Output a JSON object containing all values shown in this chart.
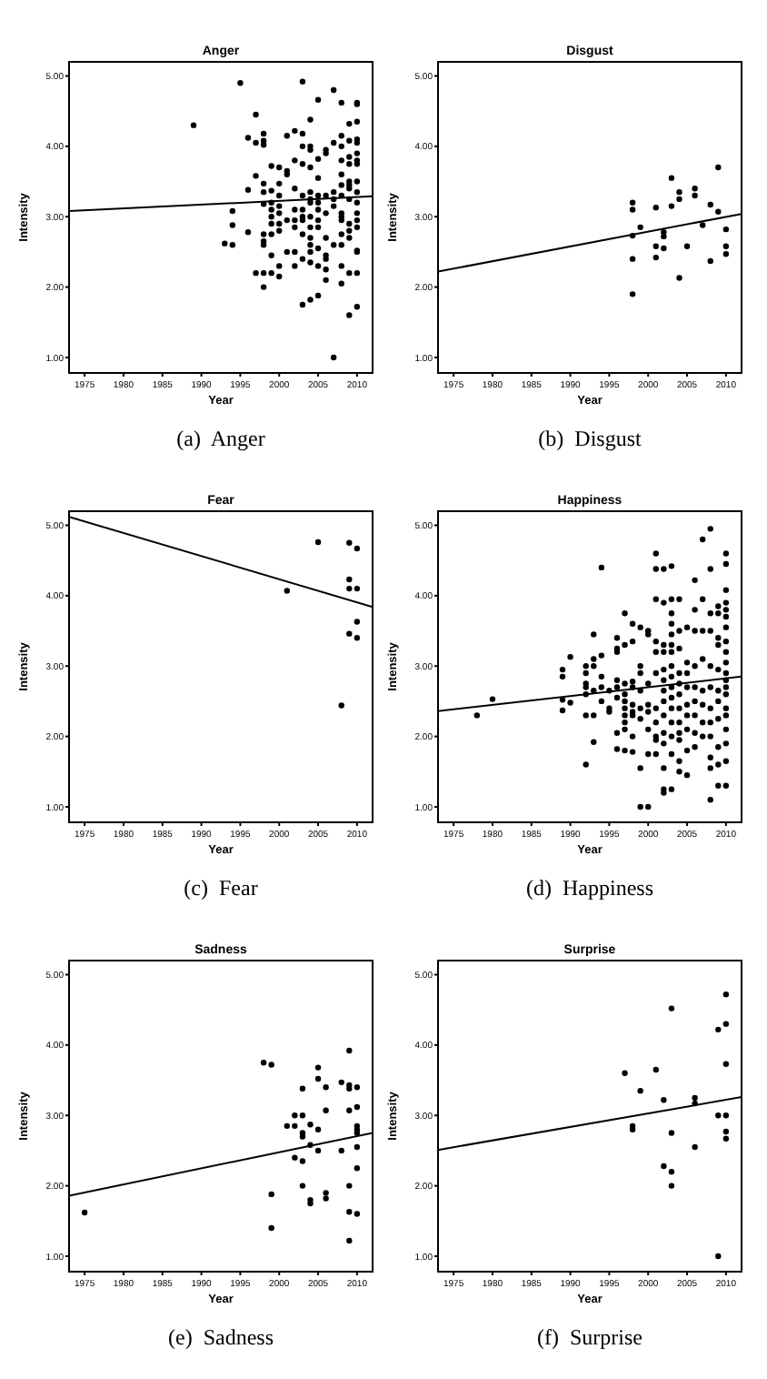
{
  "chart_data": [
    {
      "type": "scatter",
      "title": "Anger",
      "xlabel": "Year",
      "ylabel": "Intensity",
      "annotations": [
        "(a)  Anger"
      ],
      "xlim": [
        1973,
        2012
      ],
      "ylim": [
        0.78,
        5.2
      ],
      "xticks": [
        1975,
        1980,
        1985,
        1990,
        1995,
        2000,
        2005,
        2010
      ],
      "yticks": [
        {
          "value": 1,
          "label": "1.00"
        },
        {
          "value": 2,
          "label": "2.00"
        },
        {
          "value": 3,
          "label": "3.00"
        },
        {
          "value": 4,
          "label": "4.00"
        },
        {
          "value": 5,
          "label": "5.00"
        }
      ],
      "series": [
        {
          "color": "#000000",
          "marker": "circle",
          "x": [
            1989,
            1993,
            1994,
            1994,
            1994,
            1995,
            1996,
            1996,
            1996,
            1997,
            1997,
            1997,
            1997,
            1998,
            1998,
            1998,
            1998,
            1998,
            1998,
            1998,
            1998,
            1998,
            1998,
            1998,
            1999,
            1999,
            1999,
            1999,
            1999,
            1999,
            1999,
            1999,
            1999,
            2000,
            2000,
            2000,
            2000,
            2000,
            2000,
            2000,
            2000,
            2000,
            2001,
            2001,
            2001,
            2001,
            2001,
            2002,
            2002,
            2002,
            2002,
            2002,
            2002,
            2002,
            2002,
            2003,
            2003,
            2003,
            2003,
            2003,
            2003,
            2003,
            2003,
            2003,
            2003,
            2003,
            2004,
            2004,
            2004,
            2004,
            2004,
            2004,
            2004,
            2004,
            2004,
            2004,
            2004,
            2004,
            2004,
            2004,
            2005,
            2005,
            2005,
            2005,
            2005,
            2005,
            2005,
            2005,
            2005,
            2005,
            2005,
            2006,
            2006,
            2006,
            2006,
            2006,
            2006,
            2006,
            2006,
            2006,
            2007,
            2007,
            2007,
            2007,
            2007,
            2007,
            2007,
            2008,
            2008,
            2008,
            2008,
            2008,
            2008,
            2008,
            2008,
            2008,
            2008,
            2008,
            2008,
            2008,
            2008,
            2009,
            2009,
            2009,
            2009,
            2009,
            2009,
            2009,
            2009,
            2009,
            2009,
            2009,
            2009,
            2009,
            2010,
            2010,
            2010,
            2010,
            2010,
            2010,
            2010,
            2010,
            2010,
            2010,
            2010,
            2010,
            2010,
            2010,
            2010,
            2010,
            2010,
            2010
          ],
          "values": [
            4.3,
            2.62,
            3.08,
            2.88,
            2.6,
            4.9,
            4.12,
            3.38,
            2.78,
            4.45,
            4.05,
            3.58,
            2.2,
            4.18,
            4.08,
            4.02,
            3.47,
            3.35,
            3.18,
            2.75,
            2.65,
            2.6,
            2.2,
            2.0,
            3.72,
            3.37,
            3.2,
            3.1,
            3.0,
            2.9,
            2.75,
            2.45,
            2.2,
            3.7,
            3.47,
            3.3,
            3.15,
            3.05,
            2.9,
            2.8,
            2.3,
            2.15,
            4.15,
            3.65,
            3.6,
            2.95,
            2.5,
            4.22,
            3.8,
            3.4,
            3.1,
            2.95,
            2.85,
            2.5,
            2.3,
            4.92,
            4.18,
            4.0,
            3.75,
            3.3,
            3.1,
            3.0,
            2.95,
            2.75,
            2.4,
            1.75,
            4.38,
            4.0,
            3.95,
            3.7,
            3.35,
            3.25,
            3.2,
            3.0,
            2.85,
            2.7,
            2.6,
            2.5,
            2.35,
            1.82,
            4.66,
            3.82,
            3.55,
            3.3,
            3.2,
            3.1,
            2.95,
            2.85,
            2.55,
            2.3,
            1.88,
            3.95,
            3.9,
            3.3,
            3.05,
            2.7,
            2.45,
            2.4,
            2.25,
            2.1,
            4.8,
            4.05,
            3.35,
            3.25,
            3.15,
            2.6,
            1.0,
            4.62,
            4.15,
            4.0,
            3.8,
            3.6,
            3.45,
            3.3,
            3.05,
            3.0,
            2.95,
            2.75,
            2.6,
            2.3,
            2.05,
            4.32,
            4.08,
            3.85,
            3.75,
            3.5,
            3.45,
            3.4,
            3.25,
            2.9,
            2.8,
            2.7,
            2.2,
            1.6,
            4.62,
            4.6,
            4.35,
            4.1,
            4.05,
            3.9,
            3.8,
            3.75,
            3.5,
            3.35,
            3.2,
            3.05,
            2.95,
            2.85,
            2.52,
            2.5,
            2.2,
            1.72
          ]
        },
        {
          "type": "line",
          "color": "#000000",
          "x": [
            1973,
            2012
          ],
          "values": [
            3.08,
            3.29
          ]
        }
      ]
    },
    {
      "type": "scatter",
      "title": "Disgust",
      "xlabel": "Year",
      "ylabel": "Intensity",
      "annotations": [
        "(b)  Disgust"
      ],
      "xlim": [
        1973,
        2012
      ],
      "ylim": [
        0.78,
        5.2
      ],
      "xticks": [
        1975,
        1980,
        1985,
        1990,
        1995,
        2000,
        2005,
        2010
      ],
      "yticks": [
        {
          "value": 1,
          "label": "1.00"
        },
        {
          "value": 2,
          "label": "2.00"
        },
        {
          "value": 3,
          "label": "3.00"
        },
        {
          "value": 4,
          "label": "4.00"
        },
        {
          "value": 5,
          "label": "5.00"
        }
      ],
      "series": [
        {
          "color": "#000000",
          "marker": "circle",
          "x": [
            1998,
            1998,
            1998,
            1998,
            1998,
            1999,
            2001,
            2001,
            2001,
            2002,
            2002,
            2002,
            2003,
            2003,
            2004,
            2004,
            2004,
            2005,
            2006,
            2006,
            2007,
            2008,
            2008,
            2009,
            2009,
            2010,
            2010,
            2010
          ],
          "values": [
            3.2,
            3.1,
            2.73,
            2.4,
            1.9,
            2.85,
            3.13,
            2.58,
            2.42,
            2.78,
            2.72,
            2.55,
            3.55,
            3.15,
            3.35,
            3.25,
            2.13,
            2.58,
            3.4,
            3.3,
            2.88,
            3.17,
            2.37,
            3.7,
            3.07,
            2.82,
            2.58,
            2.47
          ]
        },
        {
          "type": "line",
          "color": "#000000",
          "x": [
            1973,
            2012
          ],
          "values": [
            2.22,
            3.04
          ]
        }
      ]
    },
    {
      "type": "scatter",
      "title": "Fear",
      "xlabel": "Year",
      "ylabel": "Intensity",
      "annotations": [
        "(c)  Fear"
      ],
      "xlim": [
        1973,
        2012
      ],
      "ylim": [
        0.78,
        5.2
      ],
      "xticks": [
        1975,
        1980,
        1985,
        1990,
        1995,
        2000,
        2005,
        2010
      ],
      "yticks": [
        {
          "value": 1,
          "label": "1.00"
        },
        {
          "value": 2,
          "label": "2.00"
        },
        {
          "value": 3,
          "label": "3.00"
        },
        {
          "value": 4,
          "label": "4.00"
        },
        {
          "value": 5,
          "label": "5.00"
        }
      ],
      "series": [
        {
          "color": "#000000",
          "marker": "circle",
          "x": [
            2001,
            2005,
            2008,
            2009,
            2009,
            2009,
            2009,
            2010,
            2010,
            2010,
            2010
          ],
          "values": [
            4.07,
            4.76,
            2.44,
            4.75,
            4.23,
            4.1,
            3.46,
            4.67,
            4.1,
            3.63,
            3.4
          ]
        },
        {
          "type": "line",
          "color": "#000000",
          "x": [
            1973,
            2012
          ],
          "values": [
            5.12,
            3.84
          ]
        }
      ]
    },
    {
      "type": "scatter",
      "title": "Happiness",
      "xlabel": "Year",
      "ylabel": "Intensity",
      "annotations": [
        "(d)  Happiness"
      ],
      "xlim": [
        1973,
        2012
      ],
      "ylim": [
        0.78,
        5.2
      ],
      "xticks": [
        1975,
        1980,
        1985,
        1990,
        1995,
        2000,
        2005,
        2010
      ],
      "yticks": [
        {
          "value": 1,
          "label": "1.00"
        },
        {
          "value": 2,
          "label": "2.00"
        },
        {
          "value": 3,
          "label": "3.00"
        },
        {
          "value": 4,
          "label": "4.00"
        },
        {
          "value": 5,
          "label": "5.00"
        }
      ],
      "series": [
        {
          "color": "#000000",
          "marker": "circle",
          "x": [
            1978,
            1980,
            1989,
            1989,
            1989,
            1989,
            1990,
            1990,
            1992,
            1992,
            1992,
            1992,
            1992,
            1992,
            1992,
            1993,
            1993,
            1993,
            1993,
            1993,
            1993,
            1994,
            1994,
            1994,
            1994,
            1994,
            1995,
            1995,
            1995,
            1996,
            1996,
            1996,
            1996,
            1996,
            1996,
            1996,
            1996,
            1997,
            1997,
            1997,
            1997,
            1997,
            1997,
            1997,
            1997,
            1997,
            1997,
            1998,
            1998,
            1998,
            1998,
            1998,
            1998,
            1998,
            1998,
            1998,
            1999,
            1999,
            1999,
            1999,
            1999,
            1999,
            1999,
            1999,
            2000,
            2000,
            2000,
            2000,
            2000,
            2000,
            2000,
            2000,
            2001,
            2001,
            2001,
            2001,
            2001,
            2001,
            2001,
            2001,
            2001,
            2001,
            2001,
            2002,
            2002,
            2002,
            2002,
            2002,
            2002,
            2002,
            2002,
            2002,
            2002,
            2002,
            2002,
            2002,
            2002,
            2003,
            2003,
            2003,
            2003,
            2003,
            2003,
            2003,
            2003,
            2003,
            2003,
            2003,
            2003,
            2003,
            2003,
            2003,
            2003,
            2004,
            2004,
            2004,
            2004,
            2004,
            2004,
            2004,
            2004,
            2004,
            2004,
            2004,
            2004,
            2005,
            2005,
            2005,
            2005,
            2005,
            2005,
            2005,
            2005,
            2005,
            2006,
            2006,
            2006,
            2006,
            2006,
            2006,
            2006,
            2006,
            2006,
            2007,
            2007,
            2007,
            2007,
            2007,
            2007,
            2007,
            2007,
            2008,
            2008,
            2008,
            2008,
            2008,
            2008,
            2008,
            2008,
            2008,
            2008,
            2008,
            2008,
            2009,
            2009,
            2009,
            2009,
            2009,
            2009,
            2009,
            2009,
            2009,
            2009,
            2009,
            2010,
            2010,
            2010,
            2010,
            2010,
            2010,
            2010,
            2010,
            2010,
            2010,
            2010,
            2010,
            2010,
            2010,
            2010,
            2010,
            2010,
            2010,
            2010,
            2010
          ],
          "values": [
            2.3,
            2.53,
            2.95,
            2.85,
            2.52,
            2.37,
            3.13,
            2.48,
            3.0,
            2.9,
            2.75,
            2.7,
            2.6,
            2.3,
            1.6,
            3.45,
            3.1,
            3.0,
            2.65,
            2.3,
            1.92,
            4.4,
            3.15,
            2.85,
            2.7,
            2.5,
            2.65,
            2.4,
            2.35,
            3.4,
            3.25,
            3.2,
            2.8,
            2.7,
            2.55,
            2.05,
            1.82,
            3.75,
            3.3,
            2.75,
            2.6,
            2.5,
            2.4,
            2.3,
            2.2,
            2.1,
            1.8,
            3.6,
            3.35,
            2.78,
            2.7,
            2.45,
            2.35,
            2.3,
            2.0,
            1.78,
            3.55,
            3.0,
            2.9,
            2.65,
            2.4,
            2.25,
            1.55,
            1.0,
            3.5,
            3.45,
            2.75,
            2.45,
            2.35,
            2.1,
            1.75,
            1.0,
            4.6,
            4.38,
            3.95,
            3.35,
            3.2,
            2.9,
            2.4,
            2.2,
            2.0,
            1.95,
            1.75,
            4.38,
            3.9,
            3.3,
            3.2,
            2.95,
            2.8,
            2.65,
            2.5,
            2.3,
            2.05,
            1.9,
            1.55,
            1.25,
            1.2,
            4.42,
            3.95,
            3.75,
            3.6,
            3.45,
            3.3,
            3.2,
            3.0,
            2.85,
            2.7,
            2.55,
            2.4,
            2.2,
            2.0,
            1.75,
            1.25,
            3.95,
            3.5,
            3.25,
            2.9,
            2.75,
            2.6,
            2.4,
            2.2,
            2.05,
            1.95,
            1.65,
            1.5,
            3.55,
            3.05,
            2.9,
            2.7,
            2.45,
            2.3,
            2.1,
            1.8,
            1.45,
            4.22,
            3.8,
            3.5,
            3.0,
            2.7,
            2.5,
            2.3,
            2.05,
            1.85,
            4.8,
            3.95,
            3.5,
            3.1,
            2.65,
            2.45,
            2.2,
            2.0,
            4.95,
            4.38,
            3.75,
            3.5,
            3.0,
            2.7,
            2.4,
            2.2,
            2.0,
            1.7,
            1.55,
            1.1,
            3.85,
            3.75,
            3.4,
            3.3,
            2.95,
            2.65,
            2.5,
            2.25,
            1.85,
            1.6,
            1.3,
            4.6,
            4.45,
            4.08,
            3.9,
            3.8,
            3.7,
            3.55,
            3.35,
            3.2,
            3.05,
            2.9,
            2.8,
            2.7,
            2.6,
            2.4,
            2.3,
            2.1,
            1.9,
            1.65,
            1.3
          ]
        },
        {
          "type": "line",
          "color": "#000000",
          "x": [
            1973,
            2012
          ],
          "values": [
            2.36,
            2.85
          ]
        }
      ]
    },
    {
      "type": "scatter",
      "title": "Sadness",
      "xlabel": "Year",
      "ylabel": "Intensity",
      "annotations": [
        "(e)  Sadness"
      ],
      "xlim": [
        1973,
        2012
      ],
      "ylim": [
        0.78,
        5.2
      ],
      "xticks": [
        1975,
        1980,
        1985,
        1990,
        1995,
        2000,
        2005,
        2010
      ],
      "yticks": [
        {
          "value": 1,
          "label": "1.00"
        },
        {
          "value": 2,
          "label": "2.00"
        },
        {
          "value": 3,
          "label": "3.00"
        },
        {
          "value": 4,
          "label": "4.00"
        },
        {
          "value": 5,
          "label": "5.00"
        }
      ],
      "series": [
        {
          "color": "#000000",
          "marker": "circle",
          "x": [
            1975,
            1998,
            1999,
            1999,
            1999,
            2001,
            2002,
            2002,
            2002,
            2003,
            2003,
            2003,
            2003,
            2003,
            2003,
            2004,
            2004,
            2004,
            2004,
            2005,
            2005,
            2005,
            2005,
            2006,
            2006,
            2006,
            2006,
            2008,
            2008,
            2009,
            2009,
            2009,
            2009,
            2009,
            2009,
            2009,
            2010,
            2010,
            2010,
            2010,
            2010,
            2010,
            2010,
            2010
          ],
          "values": [
            1.62,
            3.75,
            3.72,
            1.88,
            1.4,
            2.85,
            3.0,
            2.85,
            2.4,
            3.38,
            3.0,
            2.75,
            2.7,
            2.35,
            2.0,
            2.87,
            2.58,
            1.8,
            1.75,
            3.68,
            3.52,
            2.8,
            2.5,
            3.4,
            3.07,
            1.9,
            1.82,
            3.47,
            2.5,
            3.92,
            3.43,
            3.38,
            3.07,
            2.0,
            1.63,
            1.22,
            3.4,
            3.12,
            2.85,
            2.8,
            2.75,
            2.55,
            2.25,
            1.6
          ]
        },
        {
          "type": "line",
          "color": "#000000",
          "x": [
            1973,
            2012
          ],
          "values": [
            1.86,
            2.75
          ]
        }
      ]
    },
    {
      "type": "scatter",
      "title": "Surprise",
      "xlabel": "Year",
      "ylabel": "Intensity",
      "annotations": [
        "(f)  Surprise"
      ],
      "xlim": [
        1973,
        2012
      ],
      "ylim": [
        0.78,
        5.2
      ],
      "xticks": [
        1975,
        1980,
        1985,
        1990,
        1995,
        2000,
        2005,
        2010
      ],
      "yticks": [
        {
          "value": 1,
          "label": "1.00"
        },
        {
          "value": 2,
          "label": "2.00"
        },
        {
          "value": 3,
          "label": "3.00"
        },
        {
          "value": 4,
          "label": "4.00"
        },
        {
          "value": 5,
          "label": "5.00"
        }
      ],
      "series": [
        {
          "color": "#000000",
          "marker": "circle",
          "x": [
            1997,
            1998,
            1998,
            1999,
            2001,
            2002,
            2002,
            2003,
            2003,
            2003,
            2003,
            2006,
            2006,
            2006,
            2009,
            2009,
            2009,
            2010,
            2010,
            2010,
            2010,
            2010,
            2010
          ],
          "values": [
            3.6,
            2.85,
            2.8,
            3.35,
            3.65,
            3.22,
            2.28,
            4.52,
            2.75,
            2.2,
            2.0,
            3.25,
            3.17,
            2.55,
            4.22,
            3.0,
            1.0,
            4.72,
            4.3,
            3.73,
            3.0,
            2.77,
            2.67
          ]
        },
        {
          "type": "line",
          "color": "#000000",
          "x": [
            1973,
            2012
          ],
          "values": [
            2.51,
            3.26
          ]
        }
      ]
    }
  ]
}
